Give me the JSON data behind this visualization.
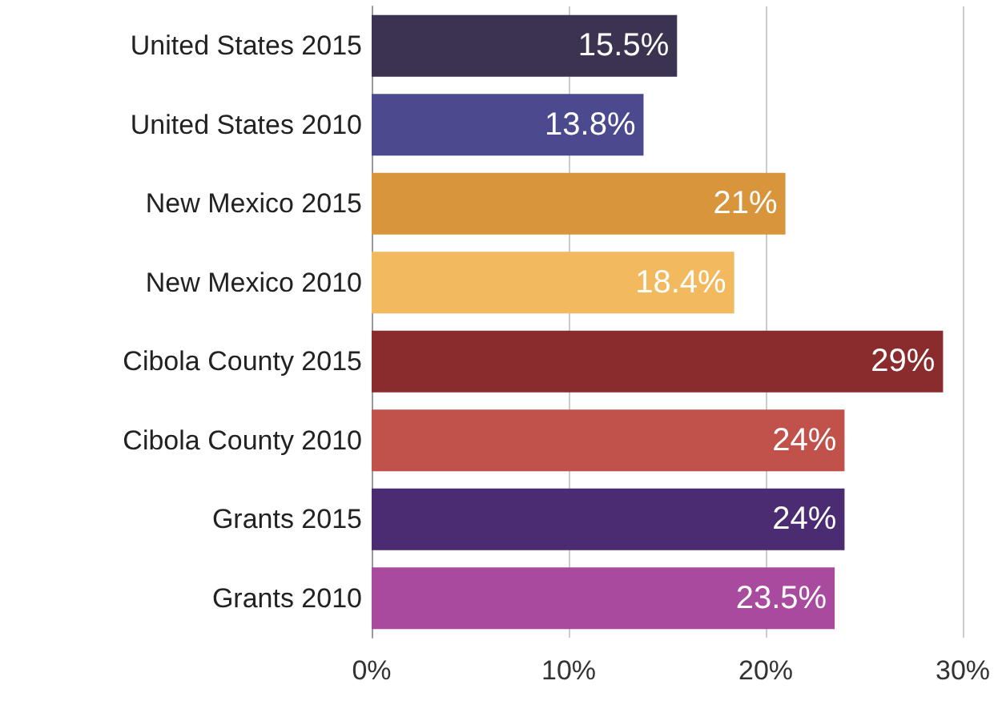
{
  "chart_data": {
    "type": "bar",
    "orientation": "horizontal",
    "categories": [
      "United States 2015",
      "United States 2010",
      "New Mexico 2015",
      "New Mexico 2010",
      "Cibola County 2015",
      "Cibola County 2010",
      "Grants 2015",
      "Grants 2010"
    ],
    "values": [
      15.5,
      13.8,
      21,
      18.4,
      29,
      24,
      24,
      23.5
    ],
    "colors": [
      "#3b3350",
      "#4b4a8e",
      "#d9953c",
      "#f3b95e",
      "#8a2b2e",
      "#c1514b",
      "#4b2b72",
      "#a84a9e"
    ],
    "value_labels": [
      "15.5%",
      "13.8%",
      "21%",
      "18.4%",
      "29%",
      "24%",
      "24%",
      "23.5%"
    ],
    "xlim": [
      0,
      30
    ],
    "xticks": [
      {
        "value": 0,
        "label": "0%"
      },
      {
        "value": 10,
        "label": "10%"
      },
      {
        "value": 20,
        "label": "20%"
      },
      {
        "value": 30,
        "label": "30%"
      }
    ],
    "grid": "x"
  }
}
